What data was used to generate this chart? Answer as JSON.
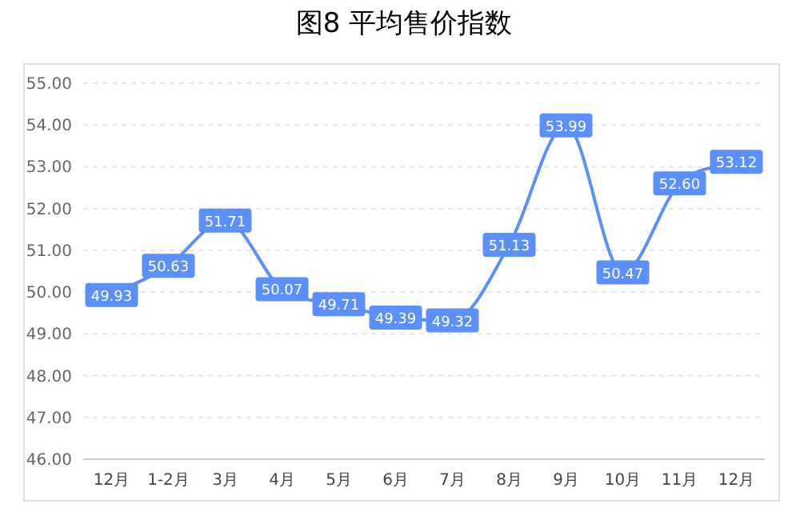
{
  "chart_data": {
    "type": "line",
    "title": "图8 平均售价指数",
    "categories": [
      "12月",
      "1-2月",
      "3月",
      "4月",
      "5月",
      "6月",
      "7月",
      "8月",
      "9月",
      "10月",
      "11月",
      "12月"
    ],
    "series": [
      {
        "color": "#5b8ff9",
        "values": [
          49.93,
          50.63,
          51.71,
          50.07,
          49.71,
          49.39,
          49.32,
          51.13,
          53.99,
          50.47,
          52.6,
          53.12
        ],
        "value_labels": [
          "49.93",
          "50.63",
          "51.71",
          "50.07",
          "49.71",
          "49.39",
          "49.32",
          "51.13",
          "53.99",
          "50.47",
          "52.60",
          "53.12"
        ]
      }
    ],
    "ylim": [
      46,
      55
    ],
    "yticks": [
      {
        "value": 46,
        "label": "46.00"
      },
      {
        "value": 47,
        "label": "47.00"
      },
      {
        "value": 48,
        "label": "48.00"
      },
      {
        "value": 49,
        "label": "49.00"
      },
      {
        "value": 50,
        "label": "50.00"
      },
      {
        "value": 51,
        "label": "51.00"
      },
      {
        "value": 52,
        "label": "52.00"
      },
      {
        "value": 53,
        "label": "53.00"
      },
      {
        "value": 54,
        "label": "54.00"
      },
      {
        "value": 55,
        "label": "55.00"
      }
    ],
    "grid": "y",
    "line_style": "solid",
    "marker": "square"
  }
}
